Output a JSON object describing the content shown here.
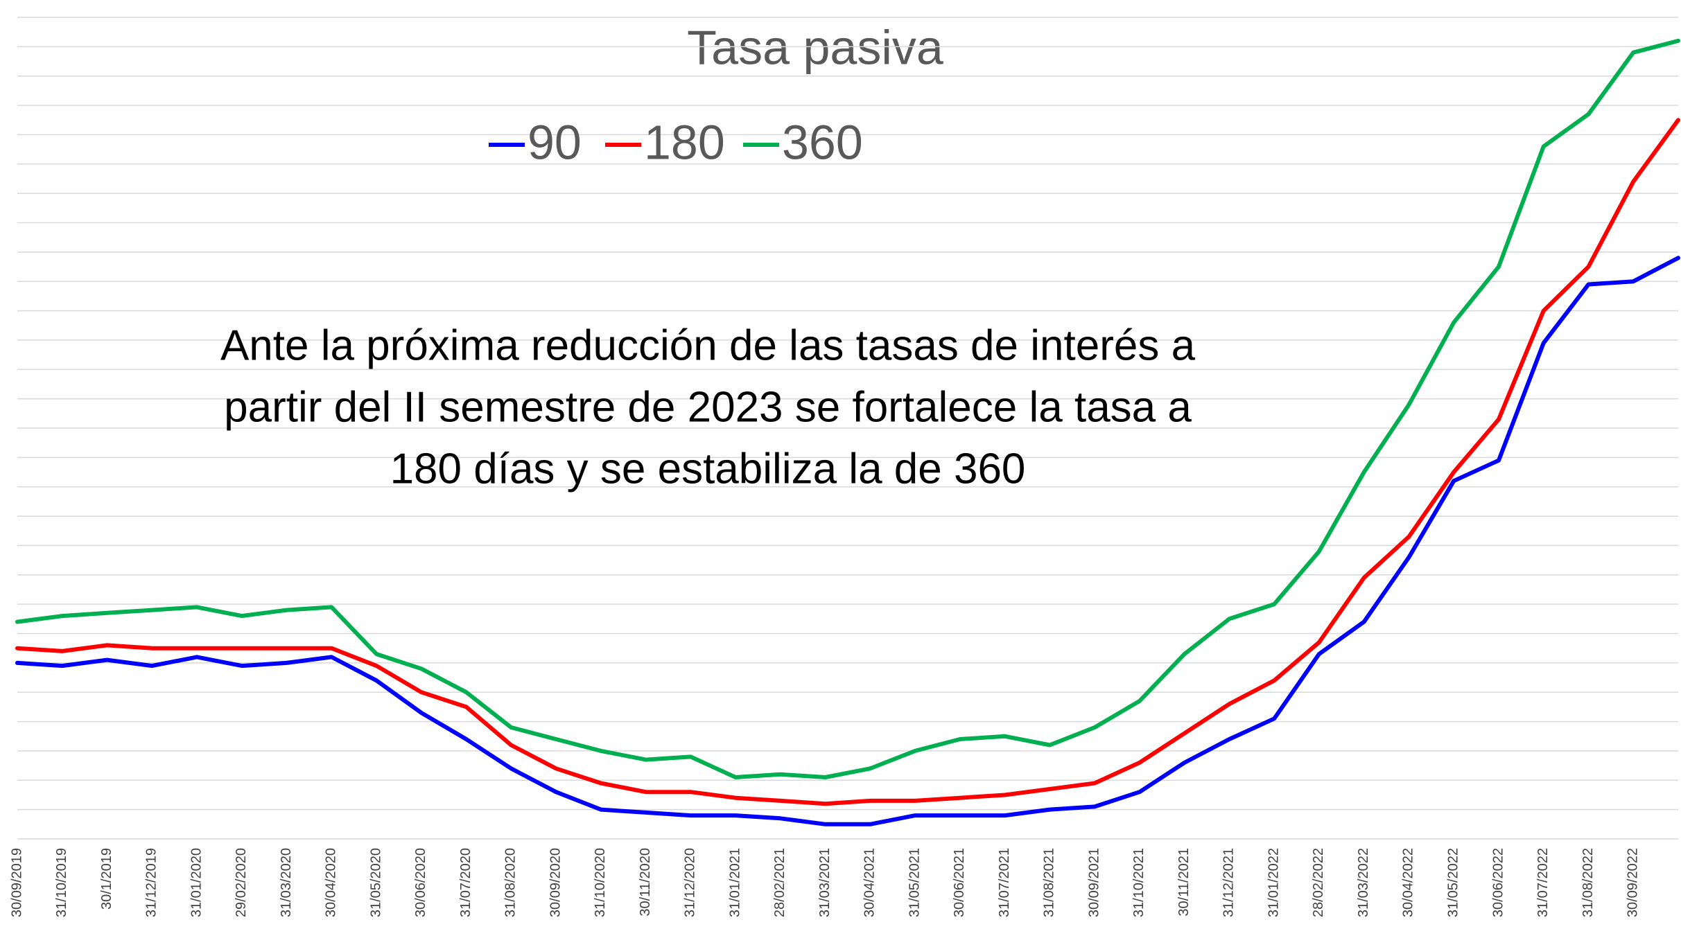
{
  "chart_data": {
    "type": "line",
    "title": "Tasa pasiva",
    "annotation": [
      "Ante la próxima reducción de las tasas de interés a",
      "partir del II semestre de 2023 se fortalece la tasa a",
      "180 días y se estabiliza la de 360"
    ],
    "categories": [
      "30/09/2019",
      "31/10/2019",
      "30/1/2019",
      "31/12/2019",
      "31/01/2020",
      "29/02/2020",
      "31/03/2020",
      "30/04/2020",
      "31/05/2020",
      "30/06/2020",
      "31/07/2020",
      "31/08/2020",
      "30/09/2020",
      "31/10/2020",
      "30/11/2020",
      "31/12/2020",
      "31/01/2021",
      "28/02/2021",
      "31/03/2021",
      "30/04/2021",
      "31/05/2021",
      "30/06/2021",
      "31/07/2021",
      "31/08/2021",
      "30/09/2021",
      "31/10/2021",
      "30/11/2021",
      "31/12/2021",
      "31/01/2022",
      "28/02/2022",
      "31/03/2022",
      "30/04/2022",
      "31/05/2022",
      "30/06/2022",
      "31/07/2022",
      "31/08/2022",
      "30/09/2022",
      null
    ],
    "series": [
      {
        "name": "90",
        "color": "#0000ff",
        "values": [
          6.0,
          5.9,
          6.1,
          5.9,
          6.2,
          5.9,
          6.0,
          6.2,
          5.4,
          4.3,
          3.4,
          2.4,
          1.6,
          1.0,
          0.9,
          0.8,
          0.8,
          0.7,
          0.5,
          0.5,
          0.8,
          0.8,
          0.8,
          1.0,
          1.1,
          1.6,
          2.6,
          3.4,
          4.1,
          6.3,
          7.4,
          9.6,
          12.2,
          12.9,
          16.9,
          18.9,
          19.0,
          19.8
        ]
      },
      {
        "name": "180",
        "color": "#ff0000",
        "values": [
          6.5,
          6.4,
          6.6,
          6.5,
          6.5,
          6.5,
          6.5,
          6.5,
          5.9,
          5.0,
          4.5,
          3.2,
          2.4,
          1.9,
          1.6,
          1.6,
          1.4,
          1.3,
          1.2,
          1.3,
          1.3,
          1.4,
          1.5,
          1.7,
          1.9,
          2.6,
          3.6,
          4.6,
          5.4,
          6.7,
          8.9,
          10.3,
          12.5,
          14.3,
          18.0,
          19.5,
          22.4,
          24.5
        ]
      },
      {
        "name": "360",
        "color": "#00b050",
        "values": [
          7.4,
          7.6,
          7.7,
          7.8,
          7.9,
          7.6,
          7.8,
          7.9,
          6.3,
          5.8,
          5.0,
          3.8,
          3.4,
          3.0,
          2.7,
          2.8,
          2.1,
          2.2,
          2.1,
          2.4,
          3.0,
          3.4,
          3.5,
          3.2,
          3.8,
          4.7,
          6.3,
          7.5,
          8.0,
          9.8,
          12.5,
          14.8,
          17.6,
          19.5,
          23.6,
          24.7,
          26.8,
          27.2
        ]
      }
    ],
    "ylim": [
      0,
      28
    ],
    "yticks": [
      0,
      1,
      2,
      3,
      4,
      5,
      6,
      7,
      8,
      9,
      10,
      11,
      12,
      13,
      14,
      15,
      16,
      17,
      18,
      19,
      20,
      21,
      22,
      23,
      24,
      25,
      26,
      27,
      28
    ],
    "grid": true
  }
}
